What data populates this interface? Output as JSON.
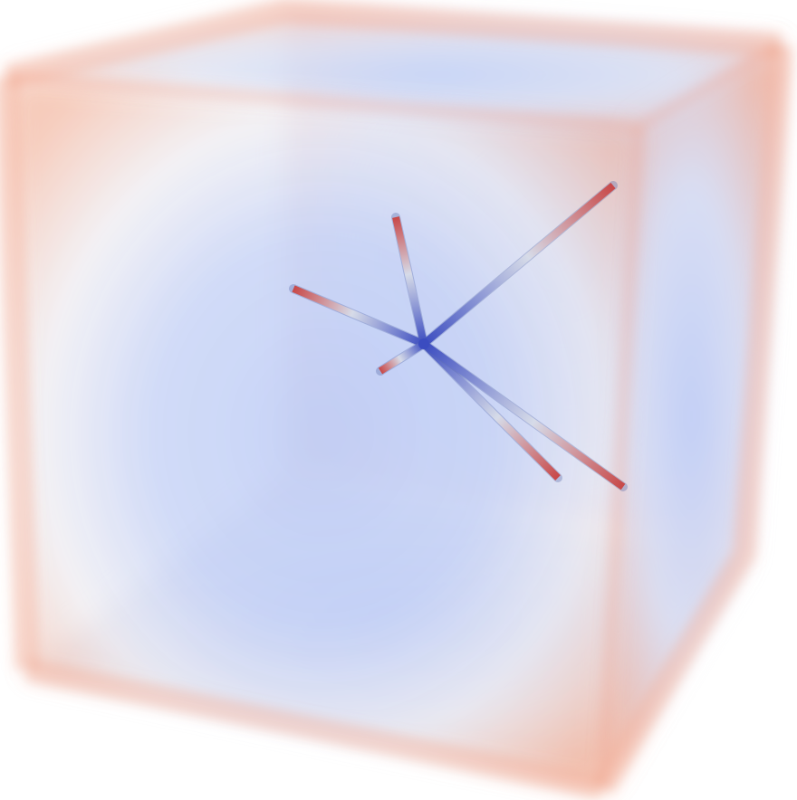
{
  "scene": {
    "description_type": "volume-render",
    "colormap": {
      "name": "cool-to-warm",
      "low_color": "#3b4cc0",
      "mid_color": "#dddddd",
      "high_color": "#b40426"
    },
    "background_color": "#ffffff",
    "volume": {
      "shape": "cube",
      "edge_color": "#f0a088",
      "center_color": "#b8c8f5"
    },
    "rods": {
      "count": 6,
      "hub_color": "#3b4cc0",
      "tip_color": "#c84848"
    }
  }
}
